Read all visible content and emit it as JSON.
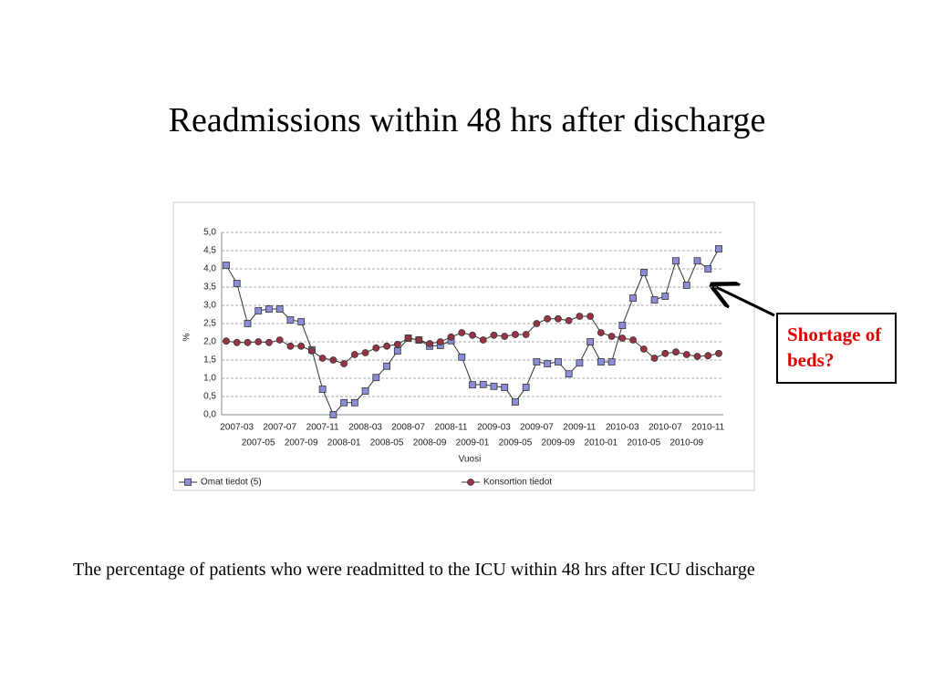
{
  "chart_data": {
    "type": "line",
    "title": "Readmissions within 48 hrs after discharge",
    "x_label": "Vuosi",
    "y_label": "%",
    "categories": [
      null,
      "2007-03",
      null,
      "2007-05",
      null,
      "2007-07",
      null,
      "2007-09",
      null,
      "2007-11",
      null,
      "2008-01",
      null,
      "2008-03",
      null,
      "2008-05",
      null,
      "2008-07",
      null,
      "2008-09",
      null,
      "2008-11",
      null,
      "2009-01",
      null,
      "2009-03",
      null,
      "2009-05",
      null,
      "2009-07",
      null,
      "2009-09",
      null,
      "2009-11",
      null,
      "2010-01",
      null,
      "2010-03",
      null,
      "2010-05",
      null,
      "2010-07",
      null,
      "2010-09",
      null,
      "2010-11",
      null
    ],
    "series": [
      {
        "name": "Omat tiedot (5)",
        "color": "#8c8cd8",
        "marker": "square",
        "values": [
          4.1,
          3.6,
          2.5,
          2.85,
          2.9,
          2.9,
          2.6,
          2.55,
          1.78,
          0.7,
          0.0,
          0.33,
          0.33,
          0.65,
          1.02,
          1.33,
          1.75,
          2.1,
          2.05,
          1.88,
          1.9,
          2.03,
          1.58,
          0.82,
          0.83,
          0.78,
          0.75,
          0.35,
          0.75,
          1.45,
          1.4,
          1.45,
          1.12,
          1.42,
          2.0,
          1.45,
          1.45,
          2.45,
          3.2,
          3.9,
          3.15,
          3.25,
          4.22,
          3.55,
          4.22,
          4.0,
          4.55
        ]
      },
      {
        "name": "Konsortion tiedot",
        "color": "#993344",
        "marker": "circle",
        "values": [
          2.02,
          1.98,
          1.98,
          2.0,
          1.98,
          2.05,
          1.88,
          1.88,
          1.75,
          1.55,
          1.5,
          1.4,
          1.65,
          1.7,
          1.83,
          1.88,
          1.93,
          2.1,
          2.05,
          1.95,
          2.0,
          2.13,
          2.25,
          2.18,
          2.05,
          2.18,
          2.15,
          2.2,
          2.2,
          2.5,
          2.63,
          2.63,
          2.58,
          2.7,
          2.7,
          2.25,
          2.15,
          2.1,
          2.05,
          1.8,
          1.55,
          1.68,
          1.72,
          1.65,
          1.6,
          1.62,
          1.68
        ]
      }
    ],
    "ylim": [
      0,
      5
    ],
    "yticks": [
      {
        "value": 0,
        "label": "0,0"
      },
      {
        "value": 0.5,
        "label": "0,5"
      },
      {
        "value": 1,
        "label": "1,0"
      },
      {
        "value": 1.5,
        "label": "1,5"
      },
      {
        "value": 2,
        "label": "2,0"
      },
      {
        "value": 2.5,
        "label": "2,5"
      },
      {
        "value": 3,
        "label": "3,0"
      },
      {
        "value": 3.5,
        "label": "3,5"
      },
      {
        "value": 4,
        "label": "4,0"
      },
      {
        "value": 4.5,
        "label": "4,5"
      },
      {
        "value": 5,
        "label": "5,0"
      }
    ],
    "grid": true,
    "legend": "bottom",
    "annotations": [
      "Shortage of beds?"
    ]
  },
  "caption": "The percentage of patients who were readmitted to the ICU within 48 hrs after ICU discharge"
}
